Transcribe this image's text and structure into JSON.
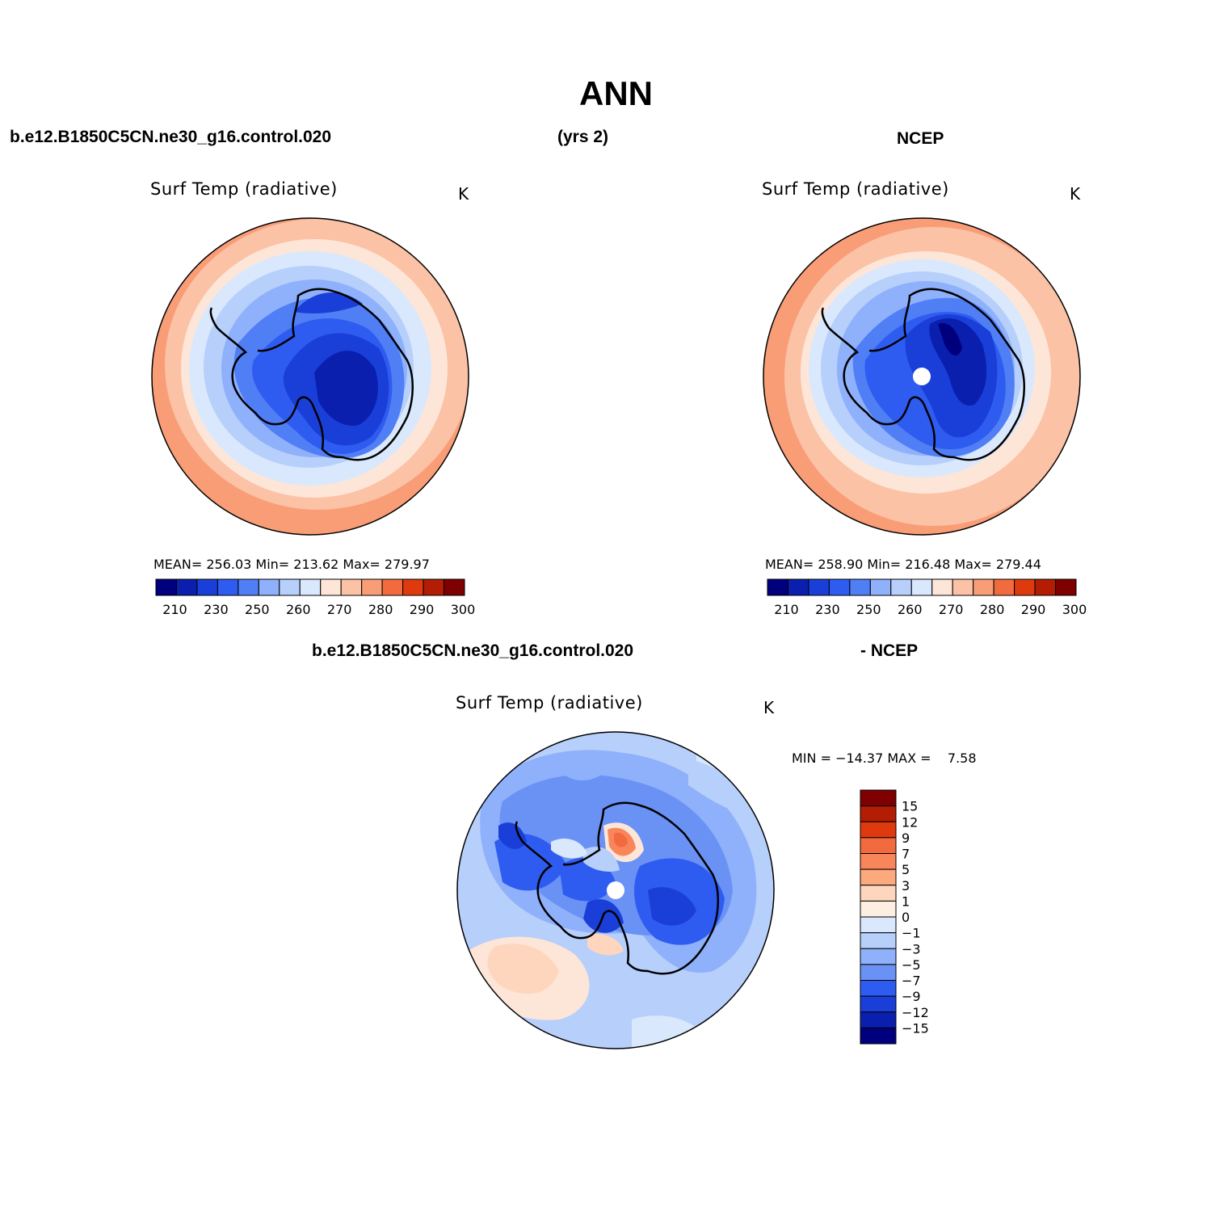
{
  "figure": {
    "title": "ANN",
    "case_name": "b.e12.B1850C5CN.ne30_g16.control.020",
    "years_label": "(yrs 2)",
    "obs_name": "NCEP",
    "diff_case_name": "b.e12.B1850C5CN.ne30_g16.control.020",
    "diff_obs_name": "- NCEP"
  },
  "panels": {
    "model": {
      "variable": "Surf Temp (radiative)",
      "units": "K",
      "stats": "MEAN= 256.03   Min= 213.62   Max= 279.97",
      "mean": 256.03,
      "min": 213.62,
      "max": 279.97
    },
    "obs": {
      "variable": "Surf Temp (radiative)",
      "units": "K",
      "stats": "MEAN= 258.90   Min= 216.48   Max= 279.44",
      "mean": 258.9,
      "min": 216.48,
      "max": 279.44
    },
    "diff": {
      "variable": "Surf Temp (radiative)",
      "units": "K",
      "stats": "MIN = −14.37 MAX =    7.58",
      "min": -14.37,
      "max": 7.58
    }
  },
  "colorbars": {
    "absolute": {
      "colors": [
        "#00007f",
        "#0a1fae",
        "#1a3fd8",
        "#2f5cf0",
        "#4f7ef5",
        "#8fb0fb",
        "#b7cffb",
        "#d9e8fc",
        "#fde6d8",
        "#fbc2a6",
        "#f99d77",
        "#f26b3f",
        "#de3a0d",
        "#b31d04",
        "#7f0000"
      ],
      "tick_labels": [
        "210",
        "230",
        "250",
        "260",
        "270",
        "280",
        "290",
        "300"
      ]
    },
    "difference": {
      "colors_top_to_bottom": [
        "#7f0000",
        "#b31d04",
        "#de3a0d",
        "#f26b3f",
        "#f9855a",
        "#fca97e",
        "#fdd6bd",
        "#fdeee2",
        "#d9e8fc",
        "#b7cffb",
        "#8fb0fb",
        "#6a92f5",
        "#2f5cf0",
        "#1a3fd8",
        "#0a1fae",
        "#00007f"
      ],
      "tick_labels": [
        "15",
        "12",
        "9",
        "7",
        "5",
        "3",
        "1",
        "0",
        "−1",
        "−3",
        "−5",
        "−7",
        "−9",
        "−12",
        "−15"
      ]
    }
  }
}
